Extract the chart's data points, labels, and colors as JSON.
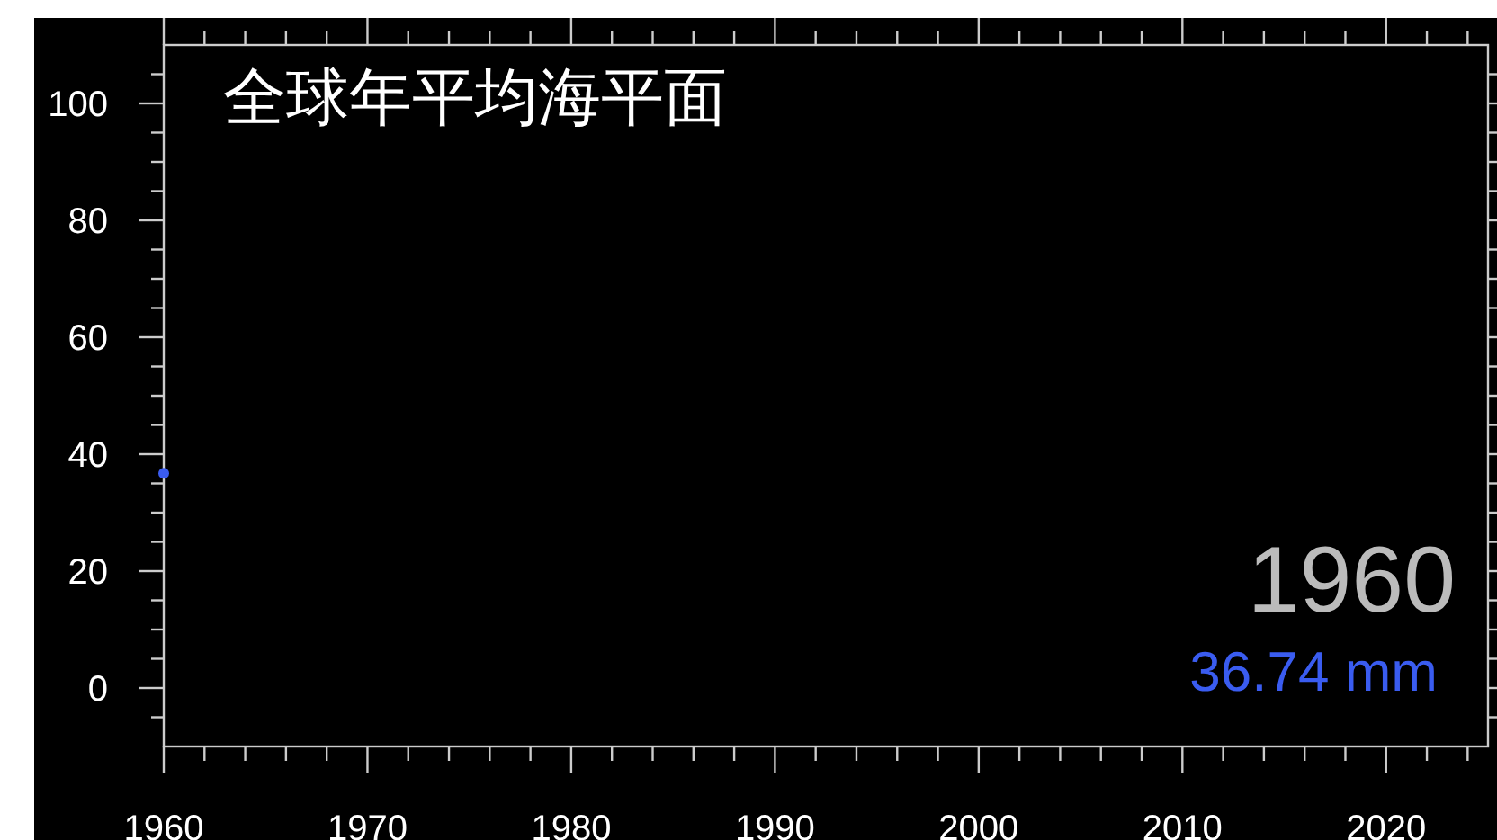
{
  "chart_data": {
    "type": "scatter",
    "title": "全球年平均海平面",
    "x": [
      1960
    ],
    "series": [
      {
        "color": "#3a5cf0",
        "values": [
          36.74
        ]
      }
    ],
    "marker": "circle",
    "grid": false,
    "xlim": [
      1960,
      2025
    ],
    "ylim": [
      -10,
      110
    ],
    "xticks": [
      1960,
      {
        "value": 1962,
        "label": null
      },
      {
        "value": 1964,
        "label": null
      },
      {
        "value": 1966,
        "label": null
      },
      {
        "value": 1968,
        "label": null
      },
      1970,
      {
        "value": 1972,
        "label": null
      },
      {
        "value": 1974,
        "label": null
      },
      {
        "value": 1976,
        "label": null
      },
      {
        "value": 1978,
        "label": null
      },
      1980,
      {
        "value": 1982,
        "label": null
      },
      {
        "value": 1984,
        "label": null
      },
      {
        "value": 1986,
        "label": null
      },
      {
        "value": 1988,
        "label": null
      },
      1990,
      {
        "value": 1992,
        "label": null
      },
      {
        "value": 1994,
        "label": null
      },
      {
        "value": 1996,
        "label": null
      },
      {
        "value": 1998,
        "label": null
      },
      2000,
      {
        "value": 2002,
        "label": null
      },
      {
        "value": 2004,
        "label": null
      },
      {
        "value": 2006,
        "label": null
      },
      {
        "value": 2008,
        "label": null
      },
      2010,
      {
        "value": 2012,
        "label": null
      },
      {
        "value": 2014,
        "label": null
      },
      {
        "value": 2016,
        "label": null
      },
      {
        "value": 2018,
        "label": null
      },
      2020,
      {
        "value": 2022,
        "label": null
      },
      {
        "value": 2024,
        "label": null
      }
    ],
    "yticks": [
      {
        "value": -5,
        "label": null
      },
      0,
      {
        "value": 5,
        "label": null
      },
      {
        "value": 10,
        "label": null
      },
      {
        "value": 15,
        "label": null
      },
      20,
      {
        "value": 25,
        "label": null
      },
      {
        "value": 30,
        "label": null
      },
      {
        "value": 35,
        "label": null
      },
      40,
      {
        "value": 45,
        "label": null
      },
      {
        "value": 50,
        "label": null
      },
      {
        "value": 55,
        "label": null
      },
      60,
      {
        "value": 65,
        "label": null
      },
      {
        "value": 70,
        "label": null
      },
      {
        "value": 75,
        "label": null
      },
      80,
      {
        "value": 85,
        "label": null
      },
      {
        "value": 90,
        "label": null
      },
      {
        "value": 95,
        "label": null
      },
      100,
      {
        "value": 105,
        "label": null
      }
    ],
    "annotations": [
      "1960",
      "36.74 mm"
    ]
  }
}
